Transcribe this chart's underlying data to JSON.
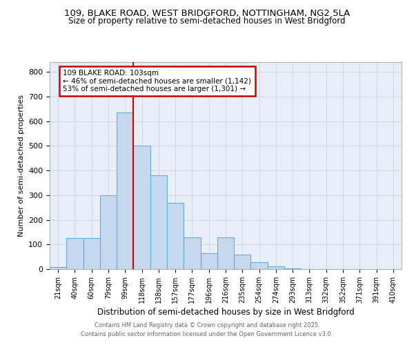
{
  "title_line1": "109, BLAKE ROAD, WEST BRIDGFORD, NOTTINGHAM, NG2 5LA",
  "title_line2": "Size of property relative to semi-detached houses in West Bridgford",
  "xlabel": "Distribution of semi-detached houses by size in West Bridgford",
  "ylabel": "Number of semi-detached properties",
  "categories": [
    "21sqm",
    "40sqm",
    "60sqm",
    "79sqm",
    "99sqm",
    "118sqm",
    "138sqm",
    "157sqm",
    "177sqm",
    "196sqm",
    "216sqm",
    "235sqm",
    "254sqm",
    "274sqm",
    "293sqm",
    "313sqm",
    "332sqm",
    "352sqm",
    "371sqm",
    "391sqm",
    "410sqm"
  ],
  "values": [
    8,
    127,
    127,
    300,
    635,
    500,
    380,
    270,
    130,
    65,
    130,
    60,
    28,
    10,
    3,
    1,
    0,
    0,
    0,
    0,
    0
  ],
  "bar_color": "#c5d8ee",
  "bar_edge_color": "#6aaad4",
  "vline_color": "#cc0000",
  "annotation_text1": "109 BLAKE ROAD: 103sqm",
  "annotation_text2": "← 46% of semi-detached houses are smaller (1,142)",
  "annotation_text3": "53% of semi-detached houses are larger (1,301) →",
  "annotation_box_color": "#cc0000",
  "ylim": [
    0,
    840
  ],
  "yticks": [
    0,
    100,
    200,
    300,
    400,
    500,
    600,
    700,
    800
  ],
  "footer_line1": "Contains HM Land Registry data © Crown copyright and database right 2025.",
  "footer_line2": "Contains public sector information licensed under the Open Government Licence v3.0.",
  "background_color": "#ffffff",
  "grid_color": "#cdd8e8",
  "plot_bg_color": "#e8eef8"
}
